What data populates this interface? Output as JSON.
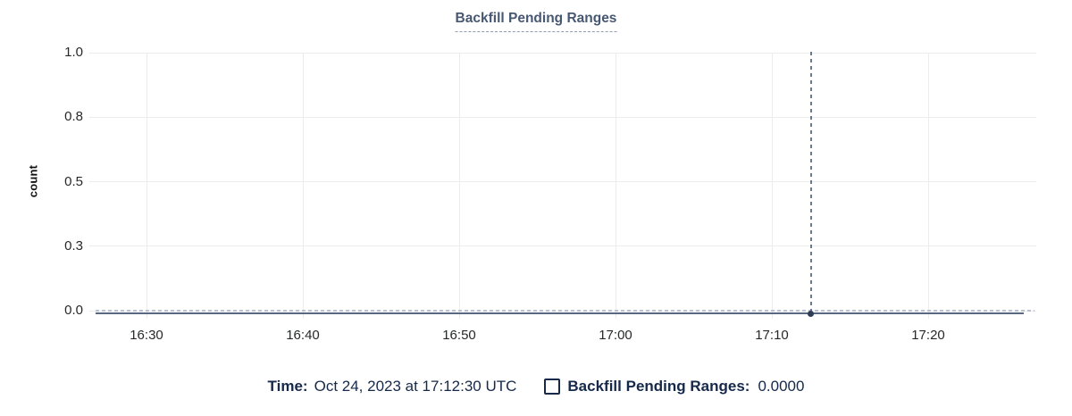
{
  "title": {
    "text": "Backfill Pending Ranges"
  },
  "chart_data": {
    "type": "line",
    "title": "Backfill Pending Ranges",
    "xlabel": "",
    "ylabel": "count",
    "ylim": [
      0,
      1.0
    ],
    "grid": true,
    "legend_position": "bottom",
    "y_ticks": [
      {
        "label": "0.0",
        "value": 0
      },
      {
        "label": "0.3",
        "value": 0.25
      },
      {
        "label": "0.5",
        "value": 0.5
      },
      {
        "label": "0.8",
        "value": 0.75
      },
      {
        "label": "1.0",
        "value": 1
      }
    ],
    "x_ticks": [
      "16:30",
      "16:40",
      "16:50",
      "17:00",
      "17:10",
      "17:20"
    ],
    "x_tick_interval_minutes": 10,
    "series": [
      {
        "name": "Backfill Pending Ranges",
        "constant_value": 0
      }
    ],
    "hover": {
      "time": "Oct 24, 2023 at 17:12:30 UTC",
      "value": 0.0,
      "value_label": "0.0000",
      "minutes_after_first_tick": 42.5
    }
  },
  "legend": {
    "time_label": "Time:",
    "time_value": "Oct 24, 2023 at 17:12:30 UTC",
    "series_checkbox_checked": false,
    "series_label": "Backfill Pending Ranges:",
    "series_value": "0.0000"
  },
  "colors": {
    "title": "#475872",
    "legend_text": "#16294b",
    "gridline": "#ececec",
    "axis_text": "#26282a",
    "series_line": "#475872",
    "zero_dashed_line": "#b7c2d2",
    "crosshair": "#6c7a90",
    "hover_dot": "#2e3d56"
  }
}
